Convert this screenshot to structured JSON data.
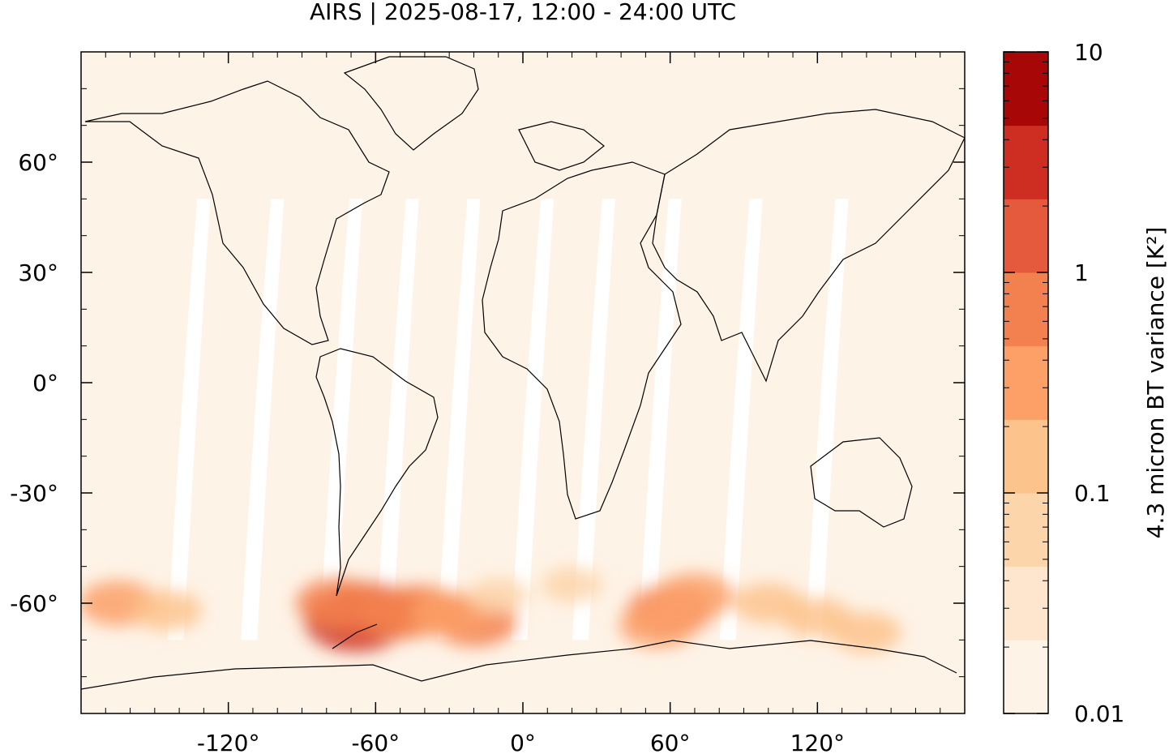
{
  "title": "AIRS | 2025-08-17, 12:00 - 24:00 UTC",
  "map": {
    "projection": "equirectangular",
    "lon_range": [
      -180,
      180
    ],
    "lat_range": [
      -90,
      90
    ],
    "lat_ticks": [
      {
        "value": 60,
        "label": "60°"
      },
      {
        "value": 30,
        "label": "30°"
      },
      {
        "value": 0,
        "label": "0°"
      },
      {
        "value": -30,
        "label": "-30°"
      },
      {
        "value": -60,
        "label": "-60°"
      }
    ],
    "lon_ticks": [
      {
        "value": -120,
        "label": "-120°"
      },
      {
        "value": -60,
        "label": "-60°"
      },
      {
        "value": 0,
        "label": "0°"
      },
      {
        "value": 60,
        "label": "60°"
      },
      {
        "value": 120,
        "label": "120°"
      }
    ],
    "background_color": "#fef3e7",
    "gap_color": "#ffffff",
    "swath_gaps_lon": [
      -130,
      -100,
      -68,
      -45,
      -20,
      10,
      35,
      62,
      95,
      130
    ],
    "hotspots": [
      {
        "lon": -68,
        "lat": -65,
        "level": 7
      },
      {
        "lon": -63,
        "lat": -62,
        "level": 6
      },
      {
        "lon": -75,
        "lat": -60,
        "level": 5
      },
      {
        "lon": -50,
        "lat": -63,
        "level": 5
      },
      {
        "lon": -42,
        "lat": -62,
        "level": 5
      },
      {
        "lon": -20,
        "lat": -65,
        "level": 5
      },
      {
        "lon": -30,
        "lat": -63,
        "level": 4
      },
      {
        "lon": 60,
        "lat": -62,
        "level": 5
      },
      {
        "lon": 55,
        "lat": -66,
        "level": 4
      },
      {
        "lon": 70,
        "lat": -58,
        "level": 4
      },
      {
        "lon": 100,
        "lat": -60,
        "level": 3
      },
      {
        "lon": 120,
        "lat": -64,
        "level": 3
      },
      {
        "lon": 140,
        "lat": -68,
        "level": 3
      },
      {
        "lon": -165,
        "lat": -60,
        "level": 4
      },
      {
        "lon": -145,
        "lat": -62,
        "level": 3
      },
      {
        "lon": -10,
        "lat": -58,
        "level": 2
      },
      {
        "lon": 20,
        "lat": -55,
        "level": 2
      }
    ]
  },
  "colorbar": {
    "label": "4.3 micron BT variance [K²]",
    "scale": "log",
    "range": [
      0.01,
      10
    ],
    "tick_labels": [
      {
        "value": 10,
        "label": "10"
      },
      {
        "value": 1,
        "label": "1"
      },
      {
        "value": 0.1,
        "label": "0.1"
      },
      {
        "value": 0.01,
        "label": "0.01"
      }
    ],
    "colors": [
      "#fef3e7",
      "#fde6cd",
      "#fdd5ab",
      "#fdc38d",
      "#fca068",
      "#f3814f",
      "#e55a3c",
      "#ce2e21",
      "#a70707"
    ]
  }
}
